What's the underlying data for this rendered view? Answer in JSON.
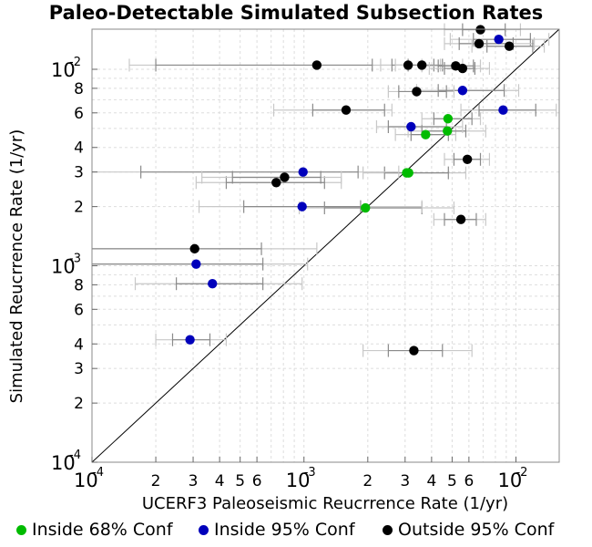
{
  "chart_data": {
    "type": "scatter",
    "title": "Paleo-Detectable Simulated Subsection Rates",
    "xlabel": "UCERF3 Paleoseismic Reucrrence Rate (1/yr)",
    "ylabel": "Simulated Reucrrence Rate (1/yr)",
    "x_scale": "log",
    "y_scale": "log",
    "xlim": [
      0.0001,
      0.016
    ],
    "ylim": [
      0.0001,
      0.016
    ],
    "grid": true,
    "reference_line": "y = x",
    "legend_position": "bottom",
    "x_tick_labels": [
      "10-4",
      "2",
      "3",
      "4",
      "5",
      "6",
      "10-3",
      "2",
      "3",
      "4",
      "5",
      "6",
      "10-2"
    ],
    "y_tick_labels": [
      "10-4",
      "2",
      "3",
      "4",
      "6",
      "8",
      "10-3",
      "2",
      "3",
      "4",
      "6",
      "8",
      "10-2"
    ],
    "series": [
      {
        "name": "Inside 68% Conf",
        "color": "#00bb00",
        "points": [
          {
            "x": 0.00195,
            "y": 0.00197,
            "x68": [
              0.00125,
              0.0036
            ],
            "x95": [
              0.00095,
              0.0051
            ]
          },
          {
            "x": 0.00305,
            "y": 0.00297,
            "x68": [
              0.0024,
              0.0048
            ],
            "x95": [
              0.0019,
              0.0058
            ]
          },
          {
            "x": 0.00312,
            "y": 0.00297
          },
          {
            "x": 0.00375,
            "y": 0.00465,
            "x68": [
              0.0032,
              0.0048
            ],
            "x95": [
              0.0027,
              0.0052
            ]
          },
          {
            "x": 0.00475,
            "y": 0.00485,
            "x68": [
              0.0036,
              0.0058
            ],
            "x95": [
              0.0031,
              0.0072
            ]
          },
          {
            "x": 0.00478,
            "y": 0.0056,
            "x68": [
              0.0041,
              0.0062
            ],
            "x95": [
              0.0036,
              0.0068
            ]
          }
        ]
      },
      {
        "name": "Inside 95% Conf",
        "color": "#0000bb",
        "points": [
          {
            "x": 0.00029,
            "y": 0.00042,
            "x68": [
              0.00024,
              0.00036
            ],
            "x95": [
              0.0002,
              0.00043
            ]
          },
          {
            "x": 0.00031,
            "y": 0.00102,
            "x68": [
              0.0001,
              0.00064
            ],
            "x95": [
              0.0001,
              0.00104
            ]
          },
          {
            "x": 0.00037,
            "y": 0.00081,
            "x68": [
              0.00025,
              0.00064
            ],
            "x95": [
              0.00016,
              0.00098
            ]
          },
          {
            "x": 0.00098,
            "y": 0.002,
            "x68": [
              0.00052,
              0.00185
            ],
            "x95": [
              0.00032,
              0.0036
            ]
          },
          {
            "x": 0.00099,
            "y": 0.003,
            "x68": [
              0.00017,
              0.0018
            ],
            "x95": [
              0.0001,
              0.0028
            ]
          },
          {
            "x": 0.0032,
            "y": 0.0051,
            "x68": [
              0.0025,
              0.0047
            ],
            "x95": [
              0.0022,
              0.0056
            ]
          },
          {
            "x": 0.0056,
            "y": 0.0078,
            "x68": [
              0.0043,
              0.0088
            ],
            "x95": [
              0.0034,
              0.0103
            ]
          },
          {
            "x": 0.0087,
            "y": 0.0062,
            "x68": [
              0.0067,
              0.0124
            ],
            "x95": [
              0.0055,
              0.0155
            ]
          },
          {
            "x": 0.0083,
            "y": 0.0142,
            "x68": [
              0.0063,
              0.0117
            ],
            "x95": [
              0.0049,
              0.0143
            ]
          }
        ]
      },
      {
        "name": "Outside 95% Conf",
        "color": "#000000",
        "points": [
          {
            "x": 0.000305,
            "y": 0.00122,
            "x68": [
              0.0001,
              0.00063
            ],
            "x95": [
              0.0001,
              0.00115
            ]
          },
          {
            "x": 0.00074,
            "y": 0.00265,
            "x68": [
              0.00043,
              0.00125
            ],
            "x95": [
              0.00031,
              0.0015
            ]
          },
          {
            "x": 0.00081,
            "y": 0.00282,
            "x68": [
              0.00046,
              0.0012
            ],
            "x95": [
              0.00033,
              0.0015
            ]
          },
          {
            "x": 0.00115,
            "y": 0.0105,
            "x68": [
              0.0002,
              0.0021
            ],
            "x95": [
              0.00015,
              0.0036
            ]
          },
          {
            "x": 0.00158,
            "y": 0.0062,
            "x68": [
              0.0011,
              0.0024
            ],
            "x95": [
              0.00072,
              0.0026
            ]
          },
          {
            "x": 0.0033,
            "y": 0.00037,
            "x68": [
              0.0025,
              0.0045
            ],
            "x95": [
              0.0019,
              0.0062
            ]
          },
          {
            "x": 0.0031,
            "y": 0.0105,
            "x68": [
              0.0026,
              0.0041
            ],
            "x95": [
              0.0023,
              0.0044
            ]
          },
          {
            "x": 0.0036,
            "y": 0.0105,
            "x68": [
              0.0031,
              0.0045
            ],
            "x95": [
              0.0027,
              0.0056
            ]
          },
          {
            "x": 0.0034,
            "y": 0.0077,
            "x68": [
              0.0028,
              0.0047
            ],
            "x95": [
              0.0025,
              0.0051
            ]
          },
          {
            "x": 0.0052,
            "y": 0.0104,
            "x68": [
              0.0043,
              0.0063
            ],
            "x95": [
              0.0036,
              0.0068
            ]
          },
          {
            "x": 0.0056,
            "y": 0.0101,
            "x68": [
              0.0046,
              0.0064
            ],
            "x95": [
              0.0039,
              0.0075
            ]
          },
          {
            "x": 0.0055,
            "y": 0.00172,
            "x68": [
              0.0046,
              0.0065
            ],
            "x95": [
              0.0041,
              0.0072
            ]
          },
          {
            "x": 0.0059,
            "y": 0.00348,
            "x68": [
              0.0051,
              0.0068
            ],
            "x95": [
              0.0046,
              0.0075
            ]
          },
          {
            "x": 0.0067,
            "y": 0.0135,
            "x68": [
              0.0054,
              0.0097
            ],
            "x95": [
              0.0046,
              0.0122
            ]
          },
          {
            "x": 0.0093,
            "y": 0.0131,
            "x68": [
              0.0073,
              0.012
            ],
            "x95": [
              0.0062,
              0.0136
            ]
          },
          {
            "x": 0.0068,
            "y": 0.0159,
            "x68": [
              0.0056,
              0.0089
            ],
            "x95": [
              0.0046,
              0.0105
            ]
          }
        ]
      }
    ]
  }
}
